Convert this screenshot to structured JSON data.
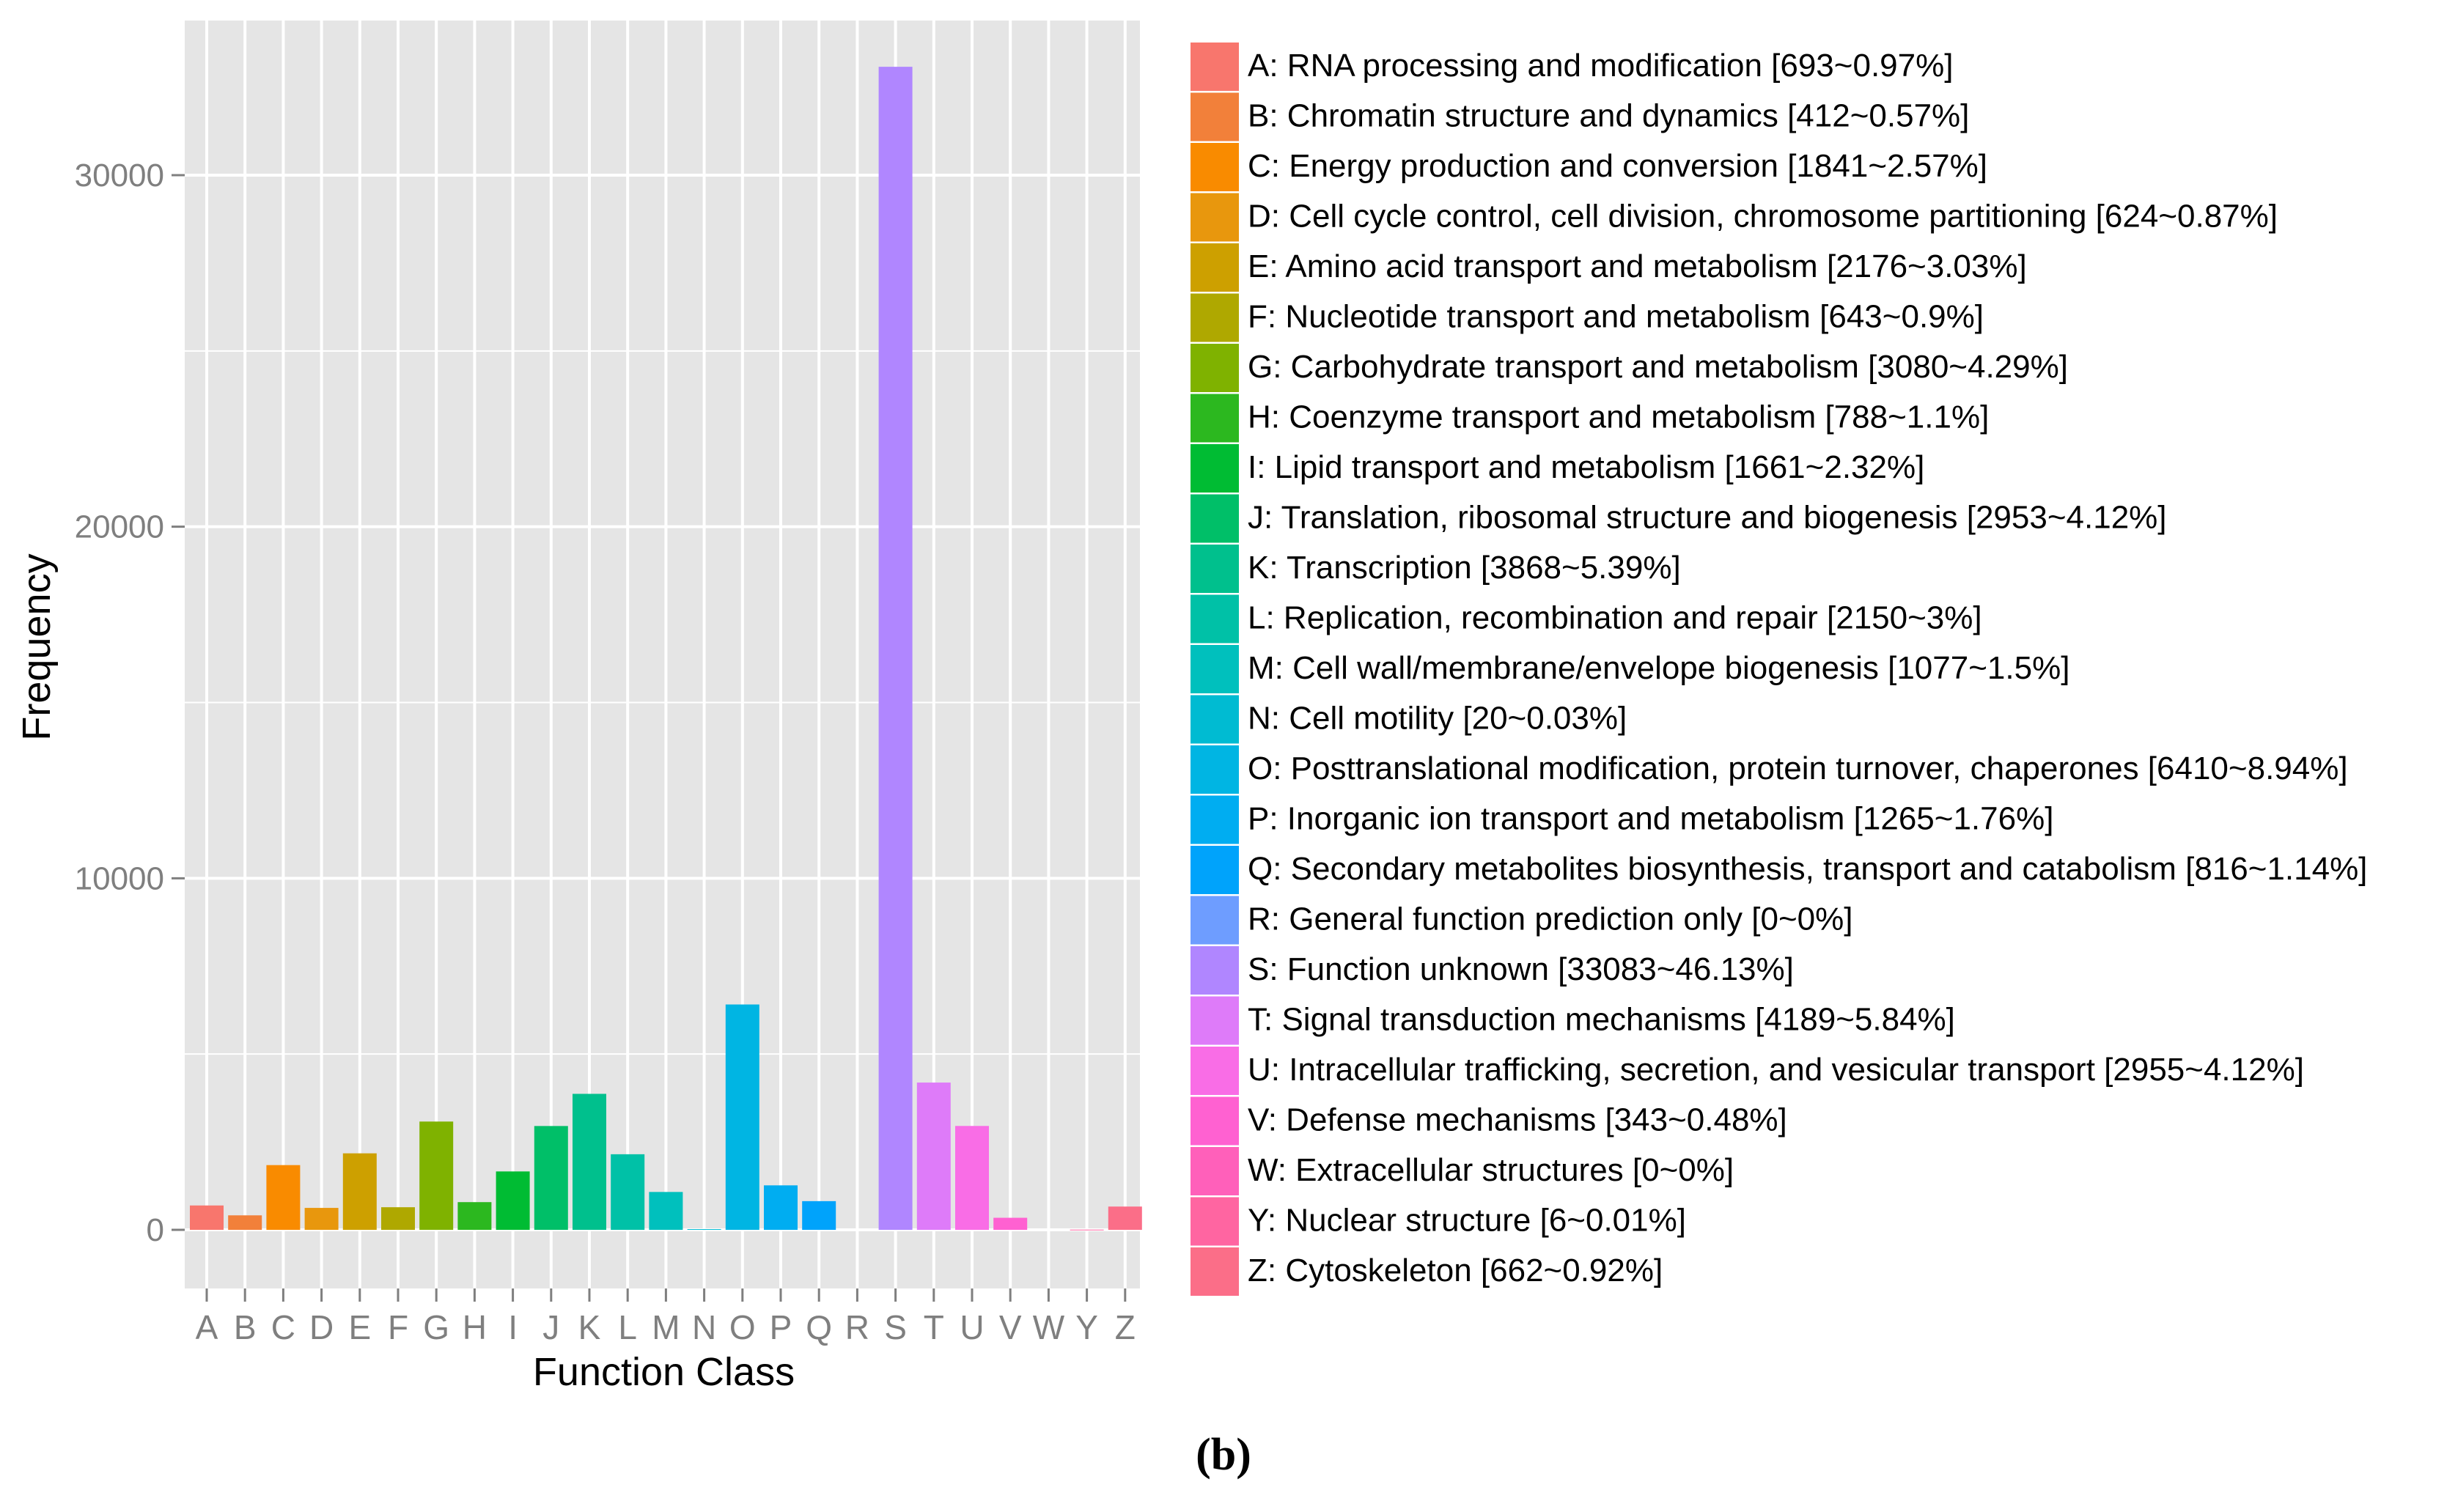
{
  "chart_data": {
    "type": "bar",
    "title": "",
    "xlabel": "Function Class",
    "ylabel": "Frequency",
    "ylim": [
      -1700,
      34200
    ],
    "yticks": [
      0,
      10000,
      20000,
      30000
    ],
    "grid": true,
    "legend_position": "right",
    "categories": [
      "A",
      "B",
      "C",
      "D",
      "E",
      "F",
      "G",
      "H",
      "I",
      "J",
      "K",
      "L",
      "M",
      "N",
      "O",
      "P",
      "Q",
      "R",
      "S",
      "T",
      "U",
      "V",
      "W",
      "Y",
      "Z"
    ],
    "values": [
      693,
      412,
      1841,
      624,
      2176,
      643,
      3080,
      788,
      1661,
      2953,
      3868,
      2150,
      1077,
      20,
      6410,
      1265,
      816,
      0,
      33083,
      4189,
      2955,
      343,
      0,
      6,
      662
    ],
    "colors": [
      "#F8766D",
      "#F2803A",
      "#F98B00",
      "#E8970D",
      "#CDA000",
      "#AFA800",
      "#7FB200",
      "#2CB81F",
      "#00BC33",
      "#00BF68",
      "#00C08D",
      "#00C1A7",
      "#00C0BD",
      "#00BBD2",
      "#00B5E3",
      "#00ADF1",
      "#00A3FB",
      "#6E9DFF",
      "#B086FF",
      "#DE7BF9",
      "#F96DE6",
      "#FF61D1",
      "#FF60BA",
      "#FF65A1",
      "#FB6E88"
    ],
    "legend": [
      "A: RNA processing and modification [693~0.97%]",
      "B: Chromatin structure and dynamics [412~0.57%]",
      "C: Energy production and conversion [1841~2.57%]",
      "D: Cell cycle control, cell division, chromosome partitioning [624~0.87%]",
      "E: Amino acid transport and metabolism [2176~3.03%]",
      "F: Nucleotide transport and metabolism [643~0.9%]",
      "G: Carbohydrate transport and metabolism [3080~4.29%]",
      "H: Coenzyme transport and metabolism [788~1.1%]",
      "I: Lipid transport and metabolism [1661~2.32%]",
      "J: Translation, ribosomal structure and biogenesis [2953~4.12%]",
      "K: Transcription [3868~5.39%]",
      "L: Replication, recombination and repair [2150~3%]",
      "M: Cell wall/membrane/envelope biogenesis [1077~1.5%]",
      "N: Cell motility [20~0.03%]",
      "O: Posttranslational modification, protein turnover, chaperones [6410~8.94%]",
      "P: Inorganic ion transport and metabolism [1265~1.76%]",
      "Q: Secondary metabolites biosynthesis, transport and catabolism [816~1.14%]",
      "R: General function prediction only [0~0%]",
      "S: Function unknown [33083~46.13%]",
      "T: Signal transduction mechanisms [4189~5.84%]",
      "U: Intracellular trafficking, secretion, and vesicular transport [2955~4.12%]",
      "V: Defense mechanisms [343~0.48%]",
      "W: Extracellular structures [0~0%]",
      "Y: Nuclear structure [6~0.01%]",
      "Z: Cytoskeleton [662~0.92%]"
    ],
    "panel_bg": "#E5E5E5",
    "grid_color": "#FFFFFF",
    "tick_label_color": "#7F7F7F",
    "label_color": "#000000"
  },
  "caption": "(b)"
}
